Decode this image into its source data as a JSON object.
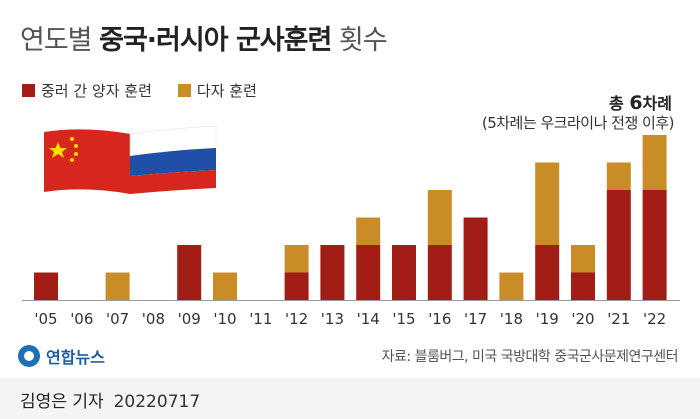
{
  "title": {
    "prefix": "연도별 ",
    "bold": "중국·러시아 군사훈련",
    "suffix": " 횟수"
  },
  "legend": {
    "bilateral": {
      "label": "중러 간 양자 훈련",
      "color": "#a31d17"
    },
    "multilateral": {
      "label": "다자 훈련",
      "color": "#c98c27"
    }
  },
  "annotation": {
    "total_prefix": "총 ",
    "total_value": "6",
    "total_suffix": "차례",
    "note": "(5차례는 우크라이나 전쟁 이후)"
  },
  "source": "자료: 블룸버그, 미국 국방대학 중국군사문제연구센터",
  "logo_text": "연합뉴스",
  "byline": {
    "reporter": "김영은 기자",
    "date": "20220717"
  },
  "chart_data": {
    "type": "bar",
    "stacked": true,
    "categories": [
      "'05",
      "'06",
      "'07",
      "'08",
      "'09",
      "'10",
      "'11",
      "'12",
      "'13",
      "'14",
      "'15",
      "'16",
      "'17",
      "'18",
      "'19",
      "'20",
      "'21",
      "'22"
    ],
    "series": [
      {
        "name": "중러 간 양자 훈련",
        "values": [
          1,
          0,
          0,
          0,
          2,
          0,
          0,
          1,
          2,
          2,
          2,
          2,
          3,
          0,
          2,
          1,
          4,
          4
        ]
      },
      {
        "name": "다자 훈련",
        "values": [
          0,
          0,
          1,
          0,
          0,
          1,
          0,
          1,
          0,
          1,
          0,
          2,
          0,
          1,
          3,
          1,
          1,
          2
        ]
      }
    ],
    "ylim": [
      0,
      6
    ]
  }
}
